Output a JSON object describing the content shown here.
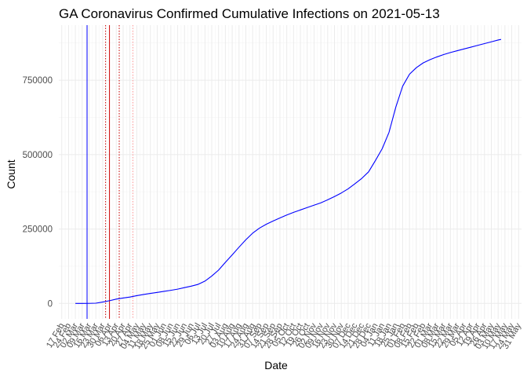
{
  "chart_data": {
    "type": "line",
    "title": "GA Coronavirus Confirmed Cumulative Infections on 2021-05-13",
    "xlabel": "Date",
    "ylabel": "Count",
    "x_axis": "date",
    "xlim": [
      "2020-02-14",
      "2021-06-03"
    ],
    "ylim": [
      -52000,
      935000
    ],
    "grid": true,
    "legend": "none",
    "y_ticks": [
      0,
      250000,
      500000,
      750000
    ],
    "y_tick_labels": [
      "0",
      "250000",
      "500000",
      "750000"
    ],
    "x_ticks": [
      "2020-02-17",
      "2020-02-24",
      "2020-03-02",
      "2020-03-09",
      "2020-03-16",
      "2020-03-23",
      "2020-03-30",
      "2020-04-06",
      "2020-04-13",
      "2020-04-20",
      "2020-04-27",
      "2020-05-04",
      "2020-05-11",
      "2020-05-18",
      "2020-05-25",
      "2020-06-01",
      "2020-06-08",
      "2020-06-15",
      "2020-06-22",
      "2020-06-29",
      "2020-07-06",
      "2020-07-13",
      "2020-07-20",
      "2020-07-27",
      "2020-08-03",
      "2020-08-10",
      "2020-08-17",
      "2020-08-24",
      "2020-08-31",
      "2020-09-07",
      "2020-09-14",
      "2020-09-21",
      "2020-09-28",
      "2020-10-05",
      "2020-10-12",
      "2020-10-19",
      "2020-10-26",
      "2020-11-02",
      "2020-11-09",
      "2020-11-16",
      "2020-11-23",
      "2020-11-30",
      "2020-12-07",
      "2020-12-14",
      "2020-12-21",
      "2020-12-28",
      "2021-01-04",
      "2021-01-11",
      "2021-01-18",
      "2021-01-25",
      "2021-02-01",
      "2021-02-08",
      "2021-02-15",
      "2021-02-22",
      "2021-03-01",
      "2021-03-08",
      "2021-03-15",
      "2021-03-22",
      "2021-03-29",
      "2021-04-05",
      "2021-04-12",
      "2021-04-19",
      "2021-04-26",
      "2021-05-03",
      "2021-05-10",
      "2021-05-17",
      "2021-05-24",
      "2021-05-31"
    ],
    "x_tick_labels": [
      "17 Feb",
      "24 Feb",
      "02 Mar",
      "09 Mar",
      "16 Mar",
      "23 Mar",
      "30 Mar",
      "06 Apr",
      "13 Apr",
      "20 Apr",
      "27 Apr",
      "04 May",
      "11 May",
      "18 May",
      "25 May",
      "01 Jun",
      "08 Jun",
      "15 Jun",
      "22 Jun",
      "29 Jun",
      "06 Jul",
      "13 Jul",
      "20 Jul",
      "27 Jul",
      "03 Aug",
      "10 Aug",
      "17 Aug",
      "24 Aug",
      "31 Aug",
      "07 Sep",
      "14 Sep",
      "21 Sep",
      "28 Sep",
      "05 Oct",
      "12 Oct",
      "19 Oct",
      "26 Oct",
      "02 Nov",
      "09 Nov",
      "16 Nov",
      "23 Nov",
      "30 Nov",
      "07 Dec",
      "14 Dec",
      "21 Dec",
      "28 Dec",
      "04 Jan",
      "11 Jan",
      "18 Jan",
      "25 Jan",
      "01 Feb",
      "08 Feb",
      "15 Feb",
      "22 Feb",
      "01 Mar",
      "08 Mar",
      "15 Mar",
      "22 Mar",
      "29 Mar",
      "05 Apr",
      "12 Apr",
      "19 Apr",
      "26 Apr",
      "03 May",
      "10 May",
      "17 May",
      "24 May",
      "31 May"
    ],
    "series": [
      {
        "color": "#0000ff",
        "x": [
          "2020-03-02",
          "2020-03-09",
          "2020-03-16",
          "2020-03-23",
          "2020-03-30",
          "2020-04-06",
          "2020-04-13",
          "2020-04-20",
          "2020-04-27",
          "2020-05-04",
          "2020-05-11",
          "2020-05-18",
          "2020-05-25",
          "2020-06-01",
          "2020-06-08",
          "2020-06-15",
          "2020-06-22",
          "2020-06-29",
          "2020-07-06",
          "2020-07-13",
          "2020-07-20",
          "2020-07-27",
          "2020-08-03",
          "2020-08-10",
          "2020-08-17",
          "2020-08-24",
          "2020-08-31",
          "2020-09-07",
          "2020-09-14",
          "2020-09-21",
          "2020-09-28",
          "2020-10-05",
          "2020-10-12",
          "2020-10-19",
          "2020-10-26",
          "2020-11-02",
          "2020-11-09",
          "2020-11-16",
          "2020-11-23",
          "2020-11-30",
          "2020-12-07",
          "2020-12-14",
          "2020-12-21",
          "2020-12-28",
          "2021-01-04",
          "2021-01-11",
          "2021-01-18",
          "2021-01-25",
          "2021-02-01",
          "2021-02-08",
          "2021-02-15",
          "2021-02-22",
          "2021-03-01",
          "2021-03-08",
          "2021-03-15",
          "2021-03-22",
          "2021-03-29",
          "2021-04-05",
          "2021-04-12",
          "2021-04-19",
          "2021-04-26",
          "2021-05-03",
          "2021-05-10",
          "2021-05-13"
        ],
        "values": [
          0,
          0,
          100,
          800,
          4500,
          9000,
          14500,
          18000,
          21500,
          26000,
          30000,
          33500,
          37000,
          40500,
          44000,
          48000,
          53000,
          58000,
          64000,
          75000,
          92000,
          112000,
          138000,
          163000,
          189000,
          214000,
          236000,
          253000,
          266000,
          277000,
          287000,
          297000,
          306000,
          314000,
          322000,
          330000,
          338000,
          348000,
          359000,
          371000,
          385000,
          402000,
          420000,
          442000,
          480000,
          520000,
          575000,
          660000,
          730000,
          770000,
          792000,
          808000,
          819000,
          828000,
          836000,
          843000,
          849000,
          855000,
          861000,
          867000,
          873000,
          879000,
          885000,
          887000
        ]
      }
    ],
    "reference_lines": [
      {
        "x": "2020-03-14",
        "color": "#0000ff",
        "style": "solid"
      },
      {
        "x": "2020-04-02",
        "color": "#cc0000",
        "style": "dotted"
      },
      {
        "x": "2020-04-06",
        "color": "#cc0000",
        "style": "solid"
      },
      {
        "x": "2020-04-16",
        "color": "#cc0000",
        "style": "dotted"
      },
      {
        "x": "2020-04-30",
        "color": "#ff9999",
        "style": "dotted"
      }
    ]
  }
}
